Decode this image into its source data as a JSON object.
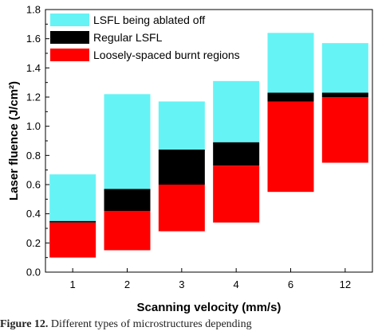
{
  "chart_data": {
    "type": "bar",
    "stacked": "floating",
    "categories": [
      "1",
      "2",
      "3",
      "4",
      "6",
      "12"
    ],
    "series": [
      {
        "name": "LSFL being ablated off",
        "color": "#66f3f5",
        "ranges": [
          [
            0.35,
            0.67
          ],
          [
            0.57,
            1.22
          ],
          [
            0.84,
            1.17
          ],
          [
            0.89,
            1.31
          ],
          [
            1.23,
            1.64
          ],
          [
            1.23,
            1.57
          ]
        ]
      },
      {
        "name": "Regular LSFL",
        "color": "#000000",
        "ranges": [
          [
            0.34,
            0.35
          ],
          [
            0.42,
            0.57
          ],
          [
            0.6,
            0.84
          ],
          [
            0.73,
            0.89
          ],
          [
            1.17,
            1.23
          ],
          [
            1.2,
            1.23
          ]
        ]
      },
      {
        "name": "Loosely-spaced burnt regions",
        "color": "#ff0000",
        "ranges": [
          [
            0.1,
            0.34
          ],
          [
            0.15,
            0.42
          ],
          [
            0.28,
            0.6
          ],
          [
            0.34,
            0.73
          ],
          [
            0.55,
            1.17
          ],
          [
            0.75,
            1.2
          ]
        ]
      }
    ],
    "xlabel": "Scanning velocity (mm/s)",
    "ylabel": "Laser fluence (J/cm²)",
    "ylim": [
      0.0,
      1.8
    ],
    "yticks": [
      "0.0",
      "0.2",
      "0.4",
      "0.6",
      "0.8",
      "1.0",
      "1.2",
      "1.4",
      "1.6",
      "1.8"
    ],
    "grid": false,
    "legend_position": "top-left"
  },
  "caption": {
    "lead": "Figure 12.",
    "text": "Different types of microstructures depending"
  }
}
